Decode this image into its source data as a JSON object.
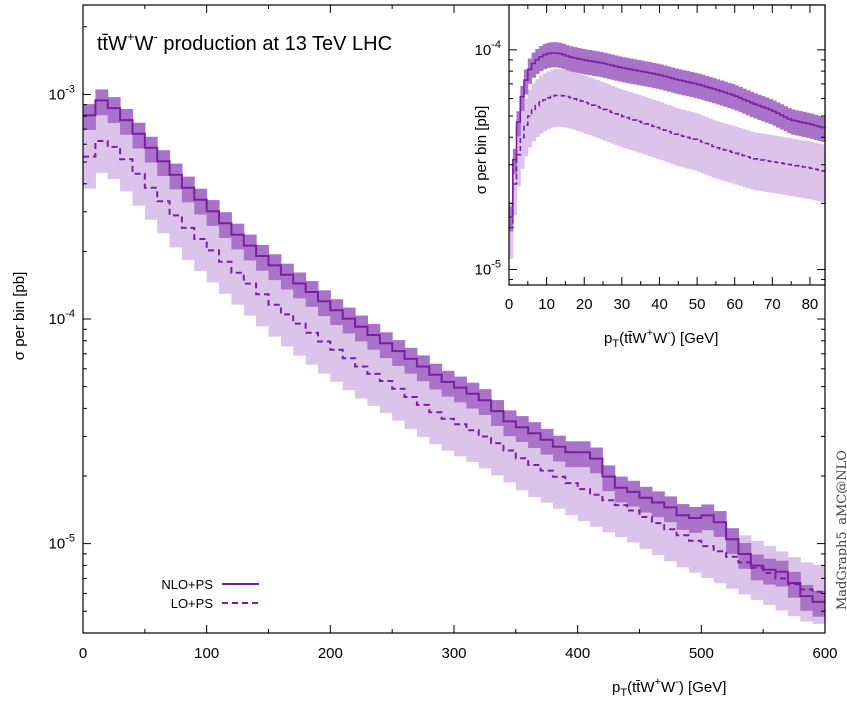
{
  "chart_data": [
    {
      "type": "line",
      "title": "tt̄W⁺W⁻ production at 13 TeV LHC",
      "xlabel": "pT(tt̄W⁺W⁻) [GeV]",
      "ylabel": "σ per bin [pb]",
      "xlim": [
        0,
        600
      ],
      "ylim": [
        4e-06,
        0.0025
      ],
      "yscale": "log",
      "x_ticks": [
        "0",
        "100",
        "200",
        "300",
        "400",
        "500",
        "600"
      ],
      "y_ticks": [
        {
          "label": "10-5",
          "value": 1e-05
        },
        {
          "label": "10-4",
          "value": 0.0001
        },
        {
          "label": "10-3",
          "value": 0.001
        }
      ],
      "legend_position": "bottom-left",
      "band_colors": {
        "nlo": "#a873c8",
        "lo": "#dcc3ea"
      },
      "series": [
        {
          "name": "NLO+PS",
          "style": "solid",
          "color": "#7b1fa2",
          "bin_width": 10,
          "points": [
            [
              0,
              0.00068
            ],
            [
              10,
              0.00096
            ],
            [
              20,
              0.00092
            ],
            [
              30,
              0.00082
            ],
            [
              40,
              0.00072
            ],
            [
              50,
              0.00062
            ],
            [
              60,
              0.00054
            ],
            [
              70,
              0.00047
            ],
            [
              80,
              0.00041
            ],
            [
              90,
              0.00036
            ],
            [
              100,
              0.00032
            ],
            [
              110,
              0.000285
            ],
            [
              120,
              0.00025
            ],
            [
              130,
              0.000225
            ],
            [
              140,
              0.0002
            ],
            [
              150,
              0.000182
            ],
            [
              160,
              0.000165
            ],
            [
              170,
              0.00015
            ],
            [
              180,
              0.000138
            ],
            [
              190,
              0.000126
            ],
            [
              200,
              0.000114
            ],
            [
              210,
              0.000105
            ],
            [
              220,
              9.6e-05
            ],
            [
              230,
              8.9e-05
            ],
            [
              240,
              8.1e-05
            ],
            [
              250,
              7.5e-05
            ],
            [
              260,
              6.9e-05
            ],
            [
              270,
              6.4e-05
            ],
            [
              280,
              5.9e-05
            ],
            [
              290,
              5.4e-05
            ],
            [
              300,
              5.1e-05
            ],
            [
              310,
              4.8e-05
            ],
            [
              320,
              4.5e-05
            ],
            [
              330,
              4.2e-05
            ],
            [
              340,
              3.6e-05
            ],
            [
              350,
              3.4e-05
            ],
            [
              360,
              3.2e-05
            ],
            [
              370,
              3e-05
            ],
            [
              380,
              2.8e-05
            ],
            [
              390,
              2.6e-05
            ],
            [
              400,
              2.5e-05
            ],
            [
              410,
              2.6e-05
            ],
            [
              420,
              2.2e-05
            ],
            [
              430,
              1.8e-05
            ],
            [
              440,
              1.75e-05
            ],
            [
              450,
              1.65e-05
            ],
            [
              460,
              1.55e-05
            ],
            [
              470,
              1.5e-05
            ],
            [
              480,
              1.4e-05
            ],
            [
              490,
              1.28e-05
            ],
            [
              500,
              1.32e-05
            ],
            [
              510,
              1.35e-05
            ],
            [
              520,
              1.15e-05
            ],
            [
              530,
              9.5e-06
            ],
            [
              540,
              8.5e-06
            ],
            [
              550,
              7.5e-06
            ],
            [
              560,
              7.8e-06
            ],
            [
              570,
              7.2e-06
            ],
            [
              580,
              6.2e-06
            ],
            [
              590,
              5.5e-06
            ]
          ]
        },
        {
          "name": "LO+PS",
          "style": "dashed",
          "color": "#7b1fa2",
          "bin_width": 10,
          "points": [
            [
              0,
              0.00045
            ],
            [
              10,
              0.00062
            ],
            [
              20,
              0.00062
            ],
            [
              30,
              0.00055
            ],
            [
              40,
              0.00048
            ],
            [
              50,
              0.00041
            ],
            [
              60,
              0.00036
            ],
            [
              70,
              0.00031
            ],
            [
              80,
              0.00027
            ],
            [
              90,
              0.00024
            ],
            [
              100,
              0.000215
            ],
            [
              110,
              0.00019
            ],
            [
              120,
              0.00017
            ],
            [
              130,
              0.000152
            ],
            [
              140,
              0.000136
            ],
            [
              150,
              0.000122
            ],
            [
              160,
              0.00011
            ],
            [
              170,
              0.0001
            ],
            [
              180,
              9.1e-05
            ],
            [
              190,
              8.3e-05
            ],
            [
              200,
              7.6e-05
            ],
            [
              210,
              7e-05
            ],
            [
              220,
              6.4e-05
            ],
            [
              230,
              5.9e-05
            ],
            [
              240,
              5.5e-05
            ],
            [
              250,
              5.1e-05
            ],
            [
              260,
              4.7e-05
            ],
            [
              270,
              4.3e-05
            ],
            [
              280,
              4e-05
            ],
            [
              290,
              3.7e-05
            ],
            [
              300,
              3.5e-05
            ],
            [
              310,
              3.3e-05
            ],
            [
              320,
              3.1e-05
            ],
            [
              330,
              2.9e-05
            ],
            [
              340,
              2.7e-05
            ],
            [
              350,
              2.5e-05
            ],
            [
              360,
              2.3e-05
            ],
            [
              370,
              2.18e-05
            ],
            [
              380,
              2.05e-05
            ],
            [
              390,
              1.92e-05
            ],
            [
              400,
              1.8e-05
            ],
            [
              410,
              1.7e-05
            ],
            [
              420,
              1.6e-05
            ],
            [
              430,
              1.52e-05
            ],
            [
              440,
              1.45e-05
            ],
            [
              450,
              1.36e-05
            ],
            [
              460,
              1.27e-05
            ],
            [
              470,
              1.2e-05
            ],
            [
              480,
              1.12e-05
            ],
            [
              490,
              1.06e-05
            ],
            [
              500,
              1e-05
            ],
            [
              510,
              9.5e-06
            ],
            [
              520,
              9e-06
            ],
            [
              530,
              8.5e-06
            ],
            [
              540,
              8e-06
            ],
            [
              550,
              7.6e-06
            ],
            [
              560,
              7.2e-06
            ],
            [
              570,
              6.8e-06
            ],
            [
              580,
              6.4e-06
            ],
            [
              590,
              6.1e-06
            ]
          ]
        }
      ]
    },
    {
      "type": "line",
      "title": "",
      "xlabel": "pT(tt̄W⁺W⁻) [GeV]",
      "ylabel": "σ per bin [pb]",
      "xlim": [
        0,
        84
      ],
      "ylim": [
        8.5e-06,
        0.00016
      ],
      "yscale": "log",
      "x_ticks": [
        "0",
        "10",
        "20",
        "30",
        "40",
        "50",
        "60",
        "70",
        "80"
      ],
      "y_ticks": [
        {
          "label": "10-5",
          "value": 1e-05
        },
        {
          "label": "10-4",
          "value": 0.0001
        }
      ],
      "series": [
        {
          "name": "NLO+PS",
          "style": "solid",
          "color": "#7b1fa2",
          "points": [
            [
              0,
              1.2e-05
            ],
            [
              1,
              2.5e-05
            ],
            [
              2,
              4e-05
            ],
            [
              3,
              5.5e-05
            ],
            [
              4,
              6.8e-05
            ],
            [
              5,
              7.8e-05
            ],
            [
              6,
              8.5e-05
            ],
            [
              8,
              9.2e-05
            ],
            [
              10,
              9.6e-05
            ],
            [
              12,
              9.7e-05
            ],
            [
              14,
              9.6e-05
            ],
            [
              16,
              9.3e-05
            ],
            [
              20,
              9e-05
            ],
            [
              25,
              8.7e-05
            ],
            [
              30,
              8.3e-05
            ],
            [
              35,
              8e-05
            ],
            [
              40,
              7.7e-05
            ],
            [
              45,
              7.3e-05
            ],
            [
              50,
              7e-05
            ],
            [
              55,
              6.6e-05
            ],
            [
              60,
              6.2e-05
            ],
            [
              65,
              5.7e-05
            ],
            [
              70,
              5.3e-05
            ],
            [
              75,
              4.8e-05
            ],
            [
              80,
              4.6e-05
            ],
            [
              84,
              4.4e-05
            ]
          ]
        },
        {
          "name": "LO+PS",
          "style": "dashed",
          "color": "#7b1fa2",
          "points": [
            [
              0,
              1.2e-05
            ],
            [
              1,
              2e-05
            ],
            [
              2,
              3e-05
            ],
            [
              3,
              3.7e-05
            ],
            [
              4,
              4.3e-05
            ],
            [
              5,
              4.8e-05
            ],
            [
              6,
              5.2e-05
            ],
            [
              8,
              5.7e-05
            ],
            [
              10,
              6e-05
            ],
            [
              12,
              6.2e-05
            ],
            [
              14,
              6.2e-05
            ],
            [
              16,
              6.1e-05
            ],
            [
              20,
              5.8e-05
            ],
            [
              25,
              5.4e-05
            ],
            [
              30,
              5e-05
            ],
            [
              35,
              4.7e-05
            ],
            [
              40,
              4.4e-05
            ],
            [
              45,
              4.1e-05
            ],
            [
              50,
              3.9e-05
            ],
            [
              55,
              3.6e-05
            ],
            [
              60,
              3.4e-05
            ],
            [
              65,
              3.2e-05
            ],
            [
              70,
              3.1e-05
            ],
            [
              75,
              3e-05
            ],
            [
              80,
              2.9e-05
            ],
            [
              84,
              2.8e-05
            ]
          ]
        }
      ]
    }
  ],
  "legend": [
    {
      "label": "NLO+PS",
      "style": "solid"
    },
    {
      "label": "LO+PS",
      "style": "dashed"
    }
  ],
  "watermark": "MadGraph5_aMC@NLO",
  "text": {
    "title_main": "tt̄W",
    "title_sup1": "+",
    "title_mid": "W",
    "title_sup2": "-",
    "title_rest": " production at 13 TeV LHC",
    "ylabel": "σ per bin [pb]",
    "xlabel_p": "p",
    "xlabel_sub": "T",
    "xlabel_a": "(tt̄W",
    "xlabel_sup1": "+",
    "xlabel_b": "W",
    "xlabel_sup2": "-",
    "xlabel_c": ") [GeV]",
    "ytick_base": "10",
    "ytick_exp_m3": "-3",
    "ytick_exp_m4": "-4",
    "ytick_exp_m5": "-5",
    "legend_nlo": "NLO+PS",
    "legend_lo": "LO+PS"
  }
}
